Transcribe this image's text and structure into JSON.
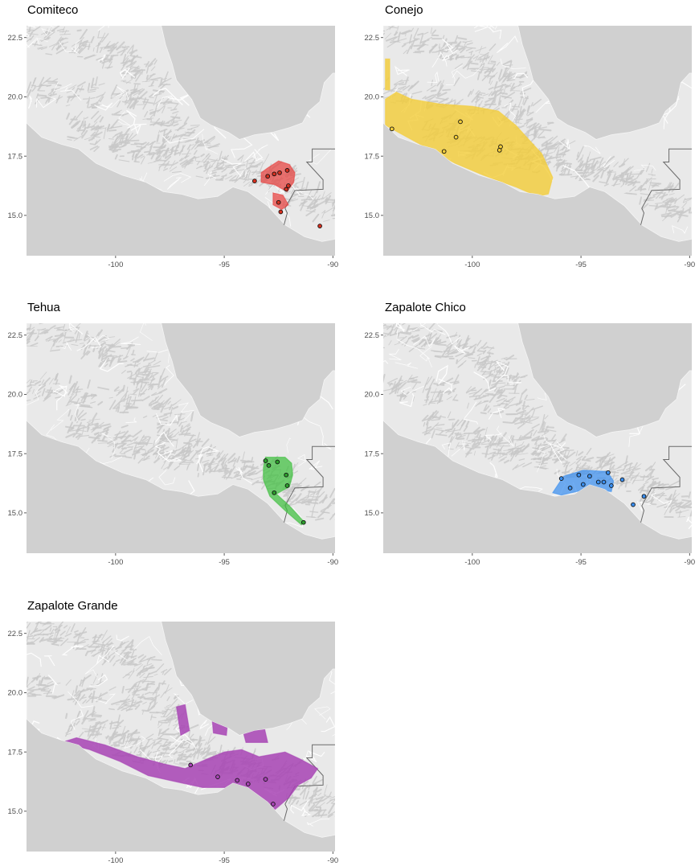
{
  "colors": {
    "ocean": "#d0d0d0",
    "land": "#e9e9e9",
    "relief": "#c8c8c8",
    "road": "#ffffff",
    "border": "#6a6a6a"
  },
  "axis": {
    "x_ticks": [
      -100,
      -95,
      -90
    ],
    "x_labels": [
      "-100",
      "-95",
      "-90"
    ],
    "y_ticks": [
      22.5,
      20.0,
      17.5,
      15.0
    ],
    "y_labels": [
      "22.5",
      "20.0",
      "17.5",
      "15.0"
    ],
    "xlim": [
      -104.1,
      -89.9
    ],
    "ylim": [
      13.3,
      23.0
    ]
  },
  "panels": [
    {
      "title": "Comiteco",
      "fill": "#e8413f",
      "fill_opacity": 0.72,
      "point_fill": "#d7301f",
      "range_polygons": [
        [
          [
            -93.0,
            17.0
          ],
          [
            -92.5,
            17.3
          ],
          [
            -92.0,
            17.15
          ],
          [
            -91.75,
            16.8
          ],
          [
            -91.8,
            16.4
          ],
          [
            -92.1,
            16.0
          ],
          [
            -92.7,
            16.3
          ],
          [
            -93.3,
            16.4
          ],
          [
            -93.3,
            16.8
          ]
        ],
        [
          [
            -92.75,
            15.95
          ],
          [
            -92.3,
            15.85
          ],
          [
            -92.05,
            15.45
          ],
          [
            -92.35,
            15.25
          ],
          [
            -92.75,
            15.45
          ]
        ]
      ],
      "points": [
        [
          -93.6,
          16.45
        ],
        [
          -93.0,
          16.65
        ],
        [
          -92.7,
          16.75
        ],
        [
          -92.45,
          16.8
        ],
        [
          -92.1,
          16.9
        ],
        [
          -92.05,
          16.25
        ],
        [
          -92.15,
          16.1
        ],
        [
          -92.5,
          15.55
        ],
        [
          -92.4,
          15.15
        ],
        [
          -90.6,
          14.55
        ]
      ]
    },
    {
      "title": "Conejo",
      "fill": "#f3cd3a",
      "fill_opacity": 0.82,
      "point_fill": "#f3cd3a",
      "range_polygons": [
        [
          [
            -104.0,
            20.3
          ],
          [
            -104.0,
            21.6
          ],
          [
            -103.8,
            21.6
          ],
          [
            -103.8,
            20.3
          ]
        ],
        [
          [
            -104.0,
            19.9
          ],
          [
            -103.5,
            20.2
          ],
          [
            -102.8,
            19.9
          ],
          [
            -101.5,
            19.7
          ],
          [
            -100.0,
            19.6
          ],
          [
            -98.8,
            19.4
          ],
          [
            -98.0,
            18.8
          ],
          [
            -97.5,
            18.3
          ],
          [
            -96.8,
            17.6
          ],
          [
            -96.3,
            16.6
          ],
          [
            -96.5,
            15.9
          ],
          [
            -97.0,
            15.8
          ],
          [
            -98.0,
            16.2
          ],
          [
            -99.5,
            16.7
          ],
          [
            -100.8,
            17.2
          ],
          [
            -102.0,
            17.8
          ],
          [
            -103.0,
            18.3
          ],
          [
            -104.0,
            18.8
          ]
        ]
      ],
      "points": [
        [
          -103.7,
          18.65
        ],
        [
          -101.3,
          17.7
        ],
        [
          -100.75,
          18.3
        ],
        [
          -100.55,
          18.95
        ],
        [
          -98.75,
          17.75
        ],
        [
          -98.7,
          17.9
        ]
      ]
    },
    {
      "title": "Tehua",
      "fill": "#3fbf3f",
      "fill_opacity": 0.72,
      "point_fill": "#2ca02c",
      "range_polygons": [
        [
          [
            -93.1,
            17.35
          ],
          [
            -92.2,
            17.35
          ],
          [
            -91.9,
            17.1
          ],
          [
            -91.85,
            16.6
          ],
          [
            -92.0,
            16.1
          ],
          [
            -92.6,
            15.8
          ],
          [
            -92.0,
            15.3
          ],
          [
            -91.3,
            14.6
          ],
          [
            -91.45,
            14.5
          ],
          [
            -92.2,
            15.1
          ],
          [
            -92.9,
            15.7
          ],
          [
            -93.2,
            16.4
          ],
          [
            -93.2,
            16.9
          ]
        ]
      ],
      "points": [
        [
          -93.1,
          17.2
        ],
        [
          -92.95,
          17.0
        ],
        [
          -92.55,
          17.15
        ],
        [
          -92.15,
          16.6
        ],
        [
          -92.1,
          16.15
        ],
        [
          -92.7,
          15.85
        ],
        [
          -91.35,
          14.6
        ]
      ]
    },
    {
      "title": "Zapalote Chico",
      "fill": "#3a8ff0",
      "fill_opacity": 0.72,
      "point_fill": "#3a8ff0",
      "range_polygons": [
        [
          [
            -96.3,
            15.85
          ],
          [
            -95.8,
            16.55
          ],
          [
            -94.9,
            16.8
          ],
          [
            -93.8,
            16.75
          ],
          [
            -93.5,
            16.35
          ],
          [
            -93.6,
            15.9
          ],
          [
            -94.5,
            16.0
          ],
          [
            -95.2,
            15.9
          ],
          [
            -95.9,
            15.75
          ]
        ]
      ],
      "points": [
        [
          -95.9,
          16.45
        ],
        [
          -95.5,
          16.05
        ],
        [
          -95.1,
          16.6
        ],
        [
          -94.9,
          16.2
        ],
        [
          -94.6,
          16.55
        ],
        [
          -94.2,
          16.3
        ],
        [
          -93.95,
          16.3
        ],
        [
          -93.75,
          16.7
        ],
        [
          -93.6,
          16.15
        ],
        [
          -93.1,
          16.4
        ],
        [
          -92.6,
          15.35
        ],
        [
          -92.1,
          15.7
        ]
      ]
    },
    {
      "title": "Zapalote Grande",
      "fill": "#a743b4",
      "fill_opacity": 0.85,
      "point_fill": "#a743b4",
      "range_polygons": [
        [
          [
            -102.5,
            17.9
          ],
          [
            -101.2,
            17.6
          ],
          [
            -99.8,
            17.1
          ],
          [
            -98.5,
            16.5
          ],
          [
            -97.0,
            16.2
          ],
          [
            -96.0,
            16.0
          ],
          [
            -95.0,
            16.0
          ],
          [
            -94.0,
            15.6
          ],
          [
            -93.6,
            15.0
          ],
          [
            -93.3,
            14.6
          ],
          [
            -92.5,
            15.2
          ],
          [
            -92.0,
            15.6
          ],
          [
            -91.6,
            16.1
          ],
          [
            -91.0,
            16.4
          ],
          [
            -90.7,
            16.8
          ],
          [
            -91.5,
            17.2
          ],
          [
            -92.2,
            17.5
          ],
          [
            -93.4,
            17.3
          ],
          [
            -94.2,
            17.6
          ],
          [
            -95.0,
            17.5
          ],
          [
            -95.8,
            17.2
          ],
          [
            -96.8,
            16.8
          ],
          [
            -97.8,
            17.0
          ],
          [
            -99.0,
            17.3
          ],
          [
            -100.5,
            17.8
          ],
          [
            -101.8,
            18.1
          ]
        ],
        [
          [
            -97.2,
            19.4
          ],
          [
            -96.8,
            19.5
          ],
          [
            -96.6,
            18.4
          ],
          [
            -97.0,
            18.2
          ]
        ],
        [
          [
            -95.6,
            19.3
          ],
          [
            -94.8,
            19.2
          ],
          [
            -94.9,
            18.2
          ],
          [
            -95.5,
            18.3
          ]
        ],
        [
          [
            -94.2,
            18.6
          ],
          [
            -93.2,
            18.7
          ],
          [
            -93.0,
            17.9
          ],
          [
            -94.0,
            17.9
          ]
        ]
      ],
      "points": [
        [
          -96.55,
          16.95
        ],
        [
          -95.3,
          16.45
        ],
        [
          -94.4,
          16.3
        ],
        [
          -93.9,
          16.15
        ],
        [
          -93.1,
          16.35
        ],
        [
          -92.75,
          15.3
        ]
      ]
    }
  ]
}
